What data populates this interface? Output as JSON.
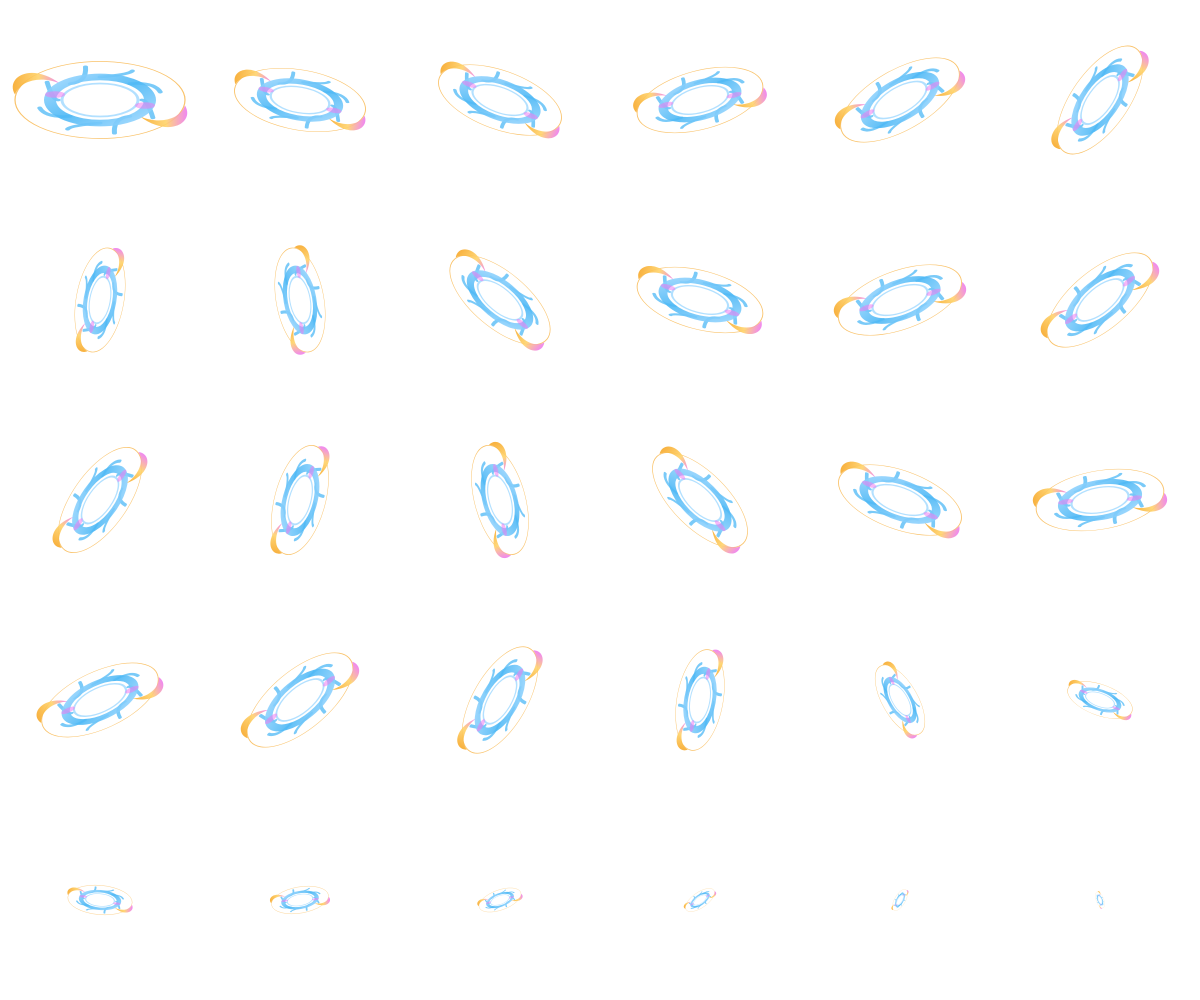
{
  "sprite_sheet": {
    "name": "vortex-effect-animation",
    "columns": 6,
    "rows": 5,
    "frame_count": 30,
    "colors": {
      "background": "#ffffff",
      "ring": "#4db8f5",
      "ring_light": "#9fd8ff",
      "flame": "#f7a829",
      "flame_light": "#ffd36b",
      "glow": "#ee7bf0"
    },
    "frames": [
      {
        "index": 1,
        "scale": 1.0,
        "rotation": 0
      },
      {
        "index": 2,
        "scale": 0.78,
        "rotation": 10
      },
      {
        "index": 3,
        "scale": 0.76,
        "rotation": 20
      },
      {
        "index": 4,
        "scale": 0.76,
        "rotation": -15
      },
      {
        "index": 5,
        "scale": 0.78,
        "rotation": -30
      },
      {
        "index": 6,
        "scale": 0.74,
        "rotation": -55
      },
      {
        "index": 7,
        "scale": 0.62,
        "rotation": -80
      },
      {
        "index": 8,
        "scale": 0.62,
        "rotation": 80
      },
      {
        "index": 9,
        "scale": 0.72,
        "rotation": 40
      },
      {
        "index": 10,
        "scale": 0.76,
        "rotation": 15
      },
      {
        "index": 11,
        "scale": 0.76,
        "rotation": -20
      },
      {
        "index": 12,
        "scale": 0.76,
        "rotation": -40
      },
      {
        "index": 13,
        "scale": 0.72,
        "rotation": -55
      },
      {
        "index": 14,
        "scale": 0.66,
        "rotation": -75
      },
      {
        "index": 15,
        "scale": 0.66,
        "rotation": 75
      },
      {
        "index": 16,
        "scale": 0.72,
        "rotation": 45
      },
      {
        "index": 17,
        "scale": 0.76,
        "rotation": 20
      },
      {
        "index": 18,
        "scale": 0.76,
        "rotation": -10
      },
      {
        "index": 19,
        "scale": 0.74,
        "rotation": -25
      },
      {
        "index": 20,
        "scale": 0.76,
        "rotation": -40
      },
      {
        "index": 21,
        "scale": 0.7,
        "rotation": -60
      },
      {
        "index": 22,
        "scale": 0.6,
        "rotation": -80
      },
      {
        "index": 23,
        "scale": 0.46,
        "rotation": 60
      },
      {
        "index": 24,
        "scale": 0.4,
        "rotation": 20
      },
      {
        "index": 25,
        "scale": 0.38,
        "rotation": 5
      },
      {
        "index": 26,
        "scale": 0.34,
        "rotation": -10
      },
      {
        "index": 27,
        "scale": 0.26,
        "rotation": -20
      },
      {
        "index": 28,
        "scale": 0.2,
        "rotation": -35
      },
      {
        "index": 29,
        "scale": 0.14,
        "rotation": -60
      },
      {
        "index": 30,
        "scale": 0.1,
        "rotation": 70
      }
    ]
  }
}
